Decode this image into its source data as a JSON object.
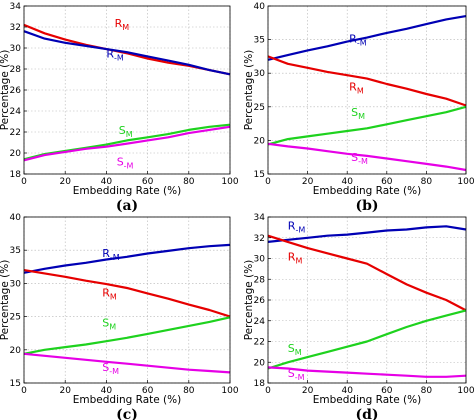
{
  "colors": {
    "R_M": "#e60000",
    "R_-M": "#0000b4",
    "S_M": "#1ed21e",
    "S_-M": "#e600e6"
  },
  "chart_data": [
    {
      "type": "line",
      "panel_label": "(a)",
      "xlabel": "Embedding Rate (%)",
      "ylabel": "Percentage (%)",
      "xlim": [
        0,
        100
      ],
      "ylim": [
        18,
        34
      ],
      "xticks": [
        0,
        20,
        40,
        60,
        80,
        100
      ],
      "yticks": [
        18,
        20,
        22,
        24,
        26,
        28,
        30,
        32,
        34
      ],
      "grid": true,
      "x": [
        0,
        10,
        20,
        30,
        40,
        50,
        60,
        70,
        80,
        90,
        100
      ],
      "series": [
        {
          "name": "R_M",
          "label_main": "R",
          "label_sub": "M",
          "label_pos": [
            44,
            32
          ],
          "values": [
            32.2,
            31.4,
            30.8,
            30.3,
            29.9,
            29.5,
            29.0,
            28.6,
            28.3,
            27.9,
            27.5
          ]
        },
        {
          "name": "R_-M",
          "label_main": "R",
          "label_sub": "-M",
          "label_pos": [
            40,
            29.1
          ],
          "values": [
            31.6,
            30.9,
            30.5,
            30.2,
            29.9,
            29.6,
            29.2,
            28.8,
            28.4,
            27.9,
            27.5
          ]
        },
        {
          "name": "S_M",
          "label_main": "S",
          "label_sub": "M",
          "label_pos": [
            46,
            21.8
          ],
          "values": [
            19.4,
            19.9,
            20.2,
            20.5,
            20.8,
            21.2,
            21.5,
            21.8,
            22.2,
            22.5,
            22.7
          ]
        },
        {
          "name": "S_-M",
          "label_main": "S",
          "label_sub": "-M",
          "label_pos": [
            45,
            18.8
          ],
          "values": [
            19.3,
            19.8,
            20.1,
            20.4,
            20.6,
            20.9,
            21.2,
            21.5,
            21.9,
            22.2,
            22.5
          ]
        }
      ]
    },
    {
      "type": "line",
      "panel_label": "(b)",
      "xlabel": "Embedding Rate (%)",
      "ylabel": "Percentage (%)",
      "xlim": [
        0,
        100
      ],
      "ylim": [
        15,
        40
      ],
      "xticks": [
        0,
        20,
        40,
        60,
        80,
        100
      ],
      "yticks": [
        15,
        20,
        25,
        30,
        35,
        40
      ],
      "grid": true,
      "x": [
        0,
        10,
        20,
        30,
        40,
        50,
        60,
        70,
        80,
        90,
        100
      ],
      "series": [
        {
          "name": "R_-M",
          "label_main": "R",
          "label_sub": "-M",
          "label_pos": [
            41,
            34.6
          ],
          "values": [
            32.0,
            32.7,
            33.4,
            34.0,
            34.7,
            35.3,
            36.0,
            36.6,
            37.3,
            38.0,
            38.5
          ]
        },
        {
          "name": "R_M",
          "label_main": "R",
          "label_sub": "M",
          "label_pos": [
            41,
            27.4
          ],
          "values": [
            32.5,
            31.4,
            30.8,
            30.2,
            29.7,
            29.2,
            28.4,
            27.7,
            26.9,
            26.2,
            25.2
          ]
        },
        {
          "name": "S_M",
          "label_main": "S",
          "label_sub": "M",
          "label_pos": [
            42,
            23.6
          ],
          "values": [
            19.4,
            20.2,
            20.6,
            21.0,
            21.4,
            21.8,
            22.4,
            23.0,
            23.6,
            24.2,
            25.0
          ]
        },
        {
          "name": "S_-M",
          "label_main": "S",
          "label_sub": "-M",
          "label_pos": [
            42,
            16.9
          ],
          "values": [
            19.5,
            19.1,
            18.8,
            18.4,
            18.0,
            17.7,
            17.3,
            16.9,
            16.5,
            16.1,
            15.6
          ]
        }
      ]
    },
    {
      "type": "line",
      "panel_label": "(c)",
      "xlabel": "Embedding Rate (%)",
      "ylabel": "Percentage (%)",
      "xlim": [
        0,
        100
      ],
      "ylim": [
        15,
        40
      ],
      "xticks": [
        0,
        20,
        40,
        60,
        80,
        100
      ],
      "yticks": [
        15,
        20,
        25,
        30,
        35,
        40
      ],
      "grid": true,
      "x": [
        0,
        10,
        20,
        30,
        40,
        50,
        60,
        70,
        80,
        90,
        100
      ],
      "series": [
        {
          "name": "R_-M",
          "label_main": "R",
          "label_sub": "-M",
          "label_pos": [
            38,
            34.0
          ],
          "values": [
            31.6,
            32.2,
            32.7,
            33.1,
            33.6,
            34.0,
            34.5,
            34.9,
            35.3,
            35.6,
            35.8
          ]
        },
        {
          "name": "R_M",
          "label_main": "R",
          "label_sub": "M",
          "label_pos": [
            38,
            28.0
          ],
          "values": [
            32.0,
            31.5,
            31.0,
            30.4,
            29.9,
            29.3,
            28.5,
            27.7,
            26.8,
            26.0,
            25.0
          ]
        },
        {
          "name": "S_M",
          "label_main": "S",
          "label_sub": "M",
          "label_pos": [
            38,
            23.5
          ],
          "values": [
            19.4,
            20.0,
            20.4,
            20.8,
            21.3,
            21.8,
            22.4,
            23.0,
            23.6,
            24.2,
            24.9
          ]
        },
        {
          "name": "S_-M",
          "label_main": "S",
          "label_sub": "-M",
          "label_pos": [
            38,
            16.8
          ],
          "values": [
            19.4,
            19.1,
            18.8,
            18.5,
            18.2,
            17.9,
            17.6,
            17.3,
            17.0,
            16.8,
            16.6
          ]
        }
      ]
    },
    {
      "type": "line",
      "panel_label": "(d)",
      "xlabel": "Embedding Rate (%)",
      "ylabel": "Percentage (%)",
      "xlim": [
        0,
        100
      ],
      "ylim": [
        18,
        34
      ],
      "xticks": [
        0,
        20,
        40,
        60,
        80,
        100
      ],
      "yticks": [
        18,
        20,
        22,
        24,
        26,
        28,
        30,
        32,
        34
      ],
      "grid": true,
      "x": [
        0,
        10,
        20,
        30,
        40,
        50,
        60,
        70,
        80,
        90,
        100
      ],
      "series": [
        {
          "name": "R_-M",
          "label_main": "R",
          "label_sub": "-M",
          "label_pos": [
            10,
            32.8
          ],
          "values": [
            31.6,
            31.8,
            32.0,
            32.2,
            32.3,
            32.5,
            32.7,
            32.8,
            33.0,
            33.1,
            32.8
          ]
        },
        {
          "name": "R_M",
          "label_main": "R",
          "label_sub": "M",
          "label_pos": [
            10,
            29.8
          ],
          "values": [
            32.2,
            31.6,
            31.0,
            30.5,
            30.0,
            29.5,
            28.5,
            27.5,
            26.7,
            26.0,
            25.0
          ]
        },
        {
          "name": "S_M",
          "label_main": "S",
          "label_sub": "M",
          "label_pos": [
            10,
            21.0
          ],
          "values": [
            19.4,
            20.0,
            20.5,
            21.0,
            21.5,
            22.0,
            22.7,
            23.4,
            24.0,
            24.5,
            25.0
          ]
        },
        {
          "name": "S_-M",
          "label_main": "S",
          "label_sub": "-M",
          "label_pos": [
            10,
            18.6
          ],
          "values": [
            19.5,
            19.4,
            19.2,
            19.1,
            19.0,
            18.9,
            18.8,
            18.7,
            18.6,
            18.6,
            18.7
          ]
        }
      ]
    }
  ]
}
